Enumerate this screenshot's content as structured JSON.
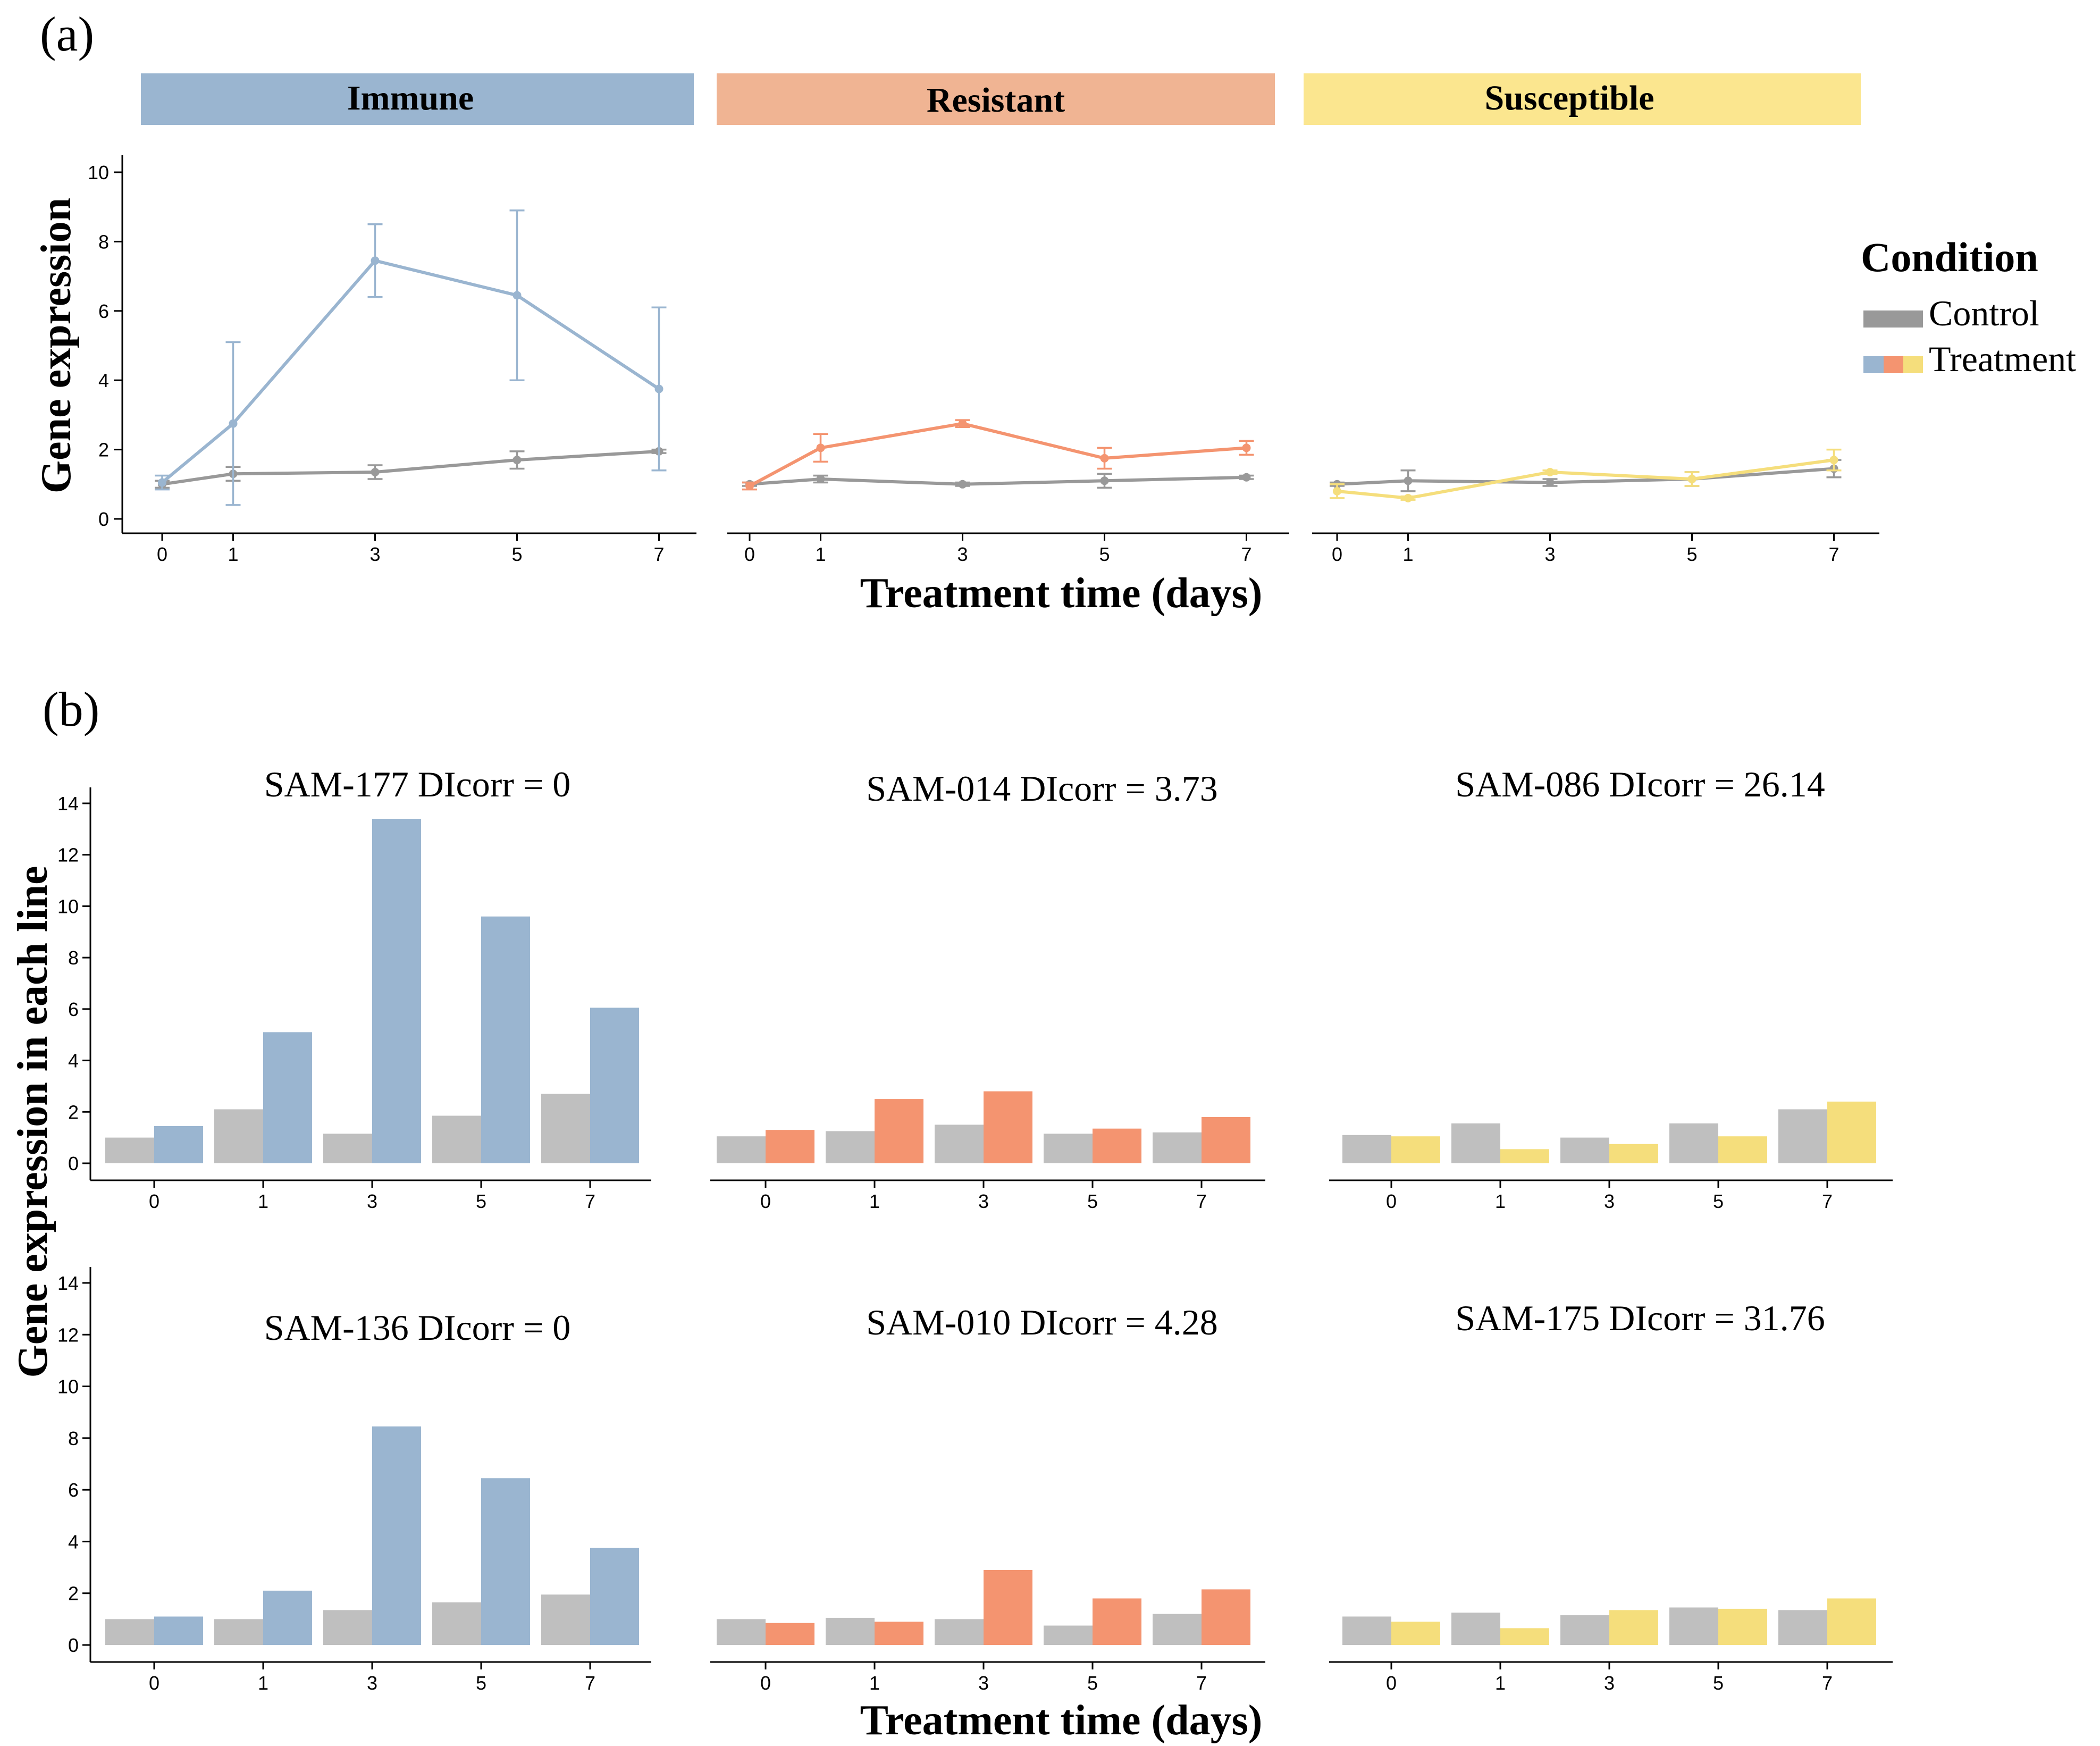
{
  "panel_a": {
    "label": "(a)",
    "ylabel": "Gene expression",
    "xlabel": "Treatment time (days)",
    "legend": {
      "title": "Condition",
      "control_label": "Control",
      "treatment_label": "Treatment"
    }
  },
  "panel_b": {
    "label": "(b)",
    "ylabel": "Gene expression in each line",
    "xlabel": "Treatment time (days)"
  },
  "colors": {
    "control": "#999999",
    "control_bar": "#bfbfbf",
    "immune": "#9ab5d0",
    "resistant": "#f49470",
    "resistant_strip": "#f0b493",
    "susceptible": "#f5de7c",
    "susceptible_strip": "#fbe68f"
  },
  "chart_data": [
    {
      "type": "line",
      "panel": "a",
      "x": [
        0,
        1,
        3,
        5,
        7
      ],
      "ylim": [
        0,
        10
      ],
      "yticks": [
        0,
        2,
        4,
        6,
        8,
        10
      ],
      "facets": [
        {
          "strip": "Immune",
          "color_key": "immune",
          "series": [
            {
              "name": "Control",
              "values": [
                1.0,
                1.3,
                1.35,
                1.7,
                1.95
              ],
              "err": [
                0.1,
                0.2,
                0.2,
                0.25,
                0.05
              ]
            },
            {
              "name": "Treatment",
              "values": [
                1.05,
                2.75,
                7.45,
                6.45,
                3.75
              ],
              "err": [
                0.2,
                2.35,
                1.05,
                2.45,
                2.35
              ]
            }
          ]
        },
        {
          "strip": "Resistant",
          "color_key": "resistant",
          "series": [
            {
              "name": "Control",
              "values": [
                1.0,
                1.15,
                1.0,
                1.1,
                1.2
              ],
              "err": [
                0.05,
                0.1,
                0.05,
                0.2,
                0.05
              ]
            },
            {
              "name": "Treatment",
              "values": [
                0.95,
                2.05,
                2.75,
                1.75,
                2.05
              ],
              "err": [
                0.1,
                0.4,
                0.1,
                0.3,
                0.2
              ]
            }
          ]
        },
        {
          "strip": "Susceptible",
          "color_key": "susceptible",
          "series": [
            {
              "name": "Control",
              "values": [
                1.0,
                1.1,
                1.05,
                1.15,
                1.45
              ],
              "err": [
                0.05,
                0.3,
                0.1,
                0.2,
                0.25
              ]
            },
            {
              "name": "Treatment",
              "values": [
                0.8,
                0.6,
                1.35,
                1.15,
                1.7
              ],
              "err": [
                0.2,
                0.05,
                0.05,
                0.2,
                0.3
              ]
            }
          ]
        }
      ]
    },
    {
      "type": "bar",
      "panel": "b",
      "categories": [
        "0",
        "1",
        "3",
        "5",
        "7"
      ],
      "ylim": [
        0,
        14
      ],
      "yticks": [
        0,
        2,
        4,
        6,
        8,
        10,
        12,
        14
      ],
      "lines": [
        {
          "title": "SAM-177 DIcorr = 0",
          "color_key": "immune",
          "control": [
            1.0,
            2.1,
            1.15,
            1.85,
            2.7
          ],
          "treatment": [
            1.45,
            5.1,
            13.4,
            9.6,
            6.05
          ]
        },
        {
          "title": "SAM-014 DIcorr = 3.73",
          "color_key": "resistant",
          "control": [
            1.05,
            1.25,
            1.5,
            1.15,
            1.2
          ],
          "treatment": [
            1.3,
            2.5,
            2.8,
            1.35,
            1.8
          ]
        },
        {
          "title": "SAM-086 DIcorr = 26.14",
          "color_key": "susceptible",
          "control": [
            1.1,
            1.55,
            1.0,
            1.55,
            2.1
          ],
          "treatment": [
            1.05,
            0.55,
            0.75,
            1.05,
            2.4
          ]
        },
        {
          "title": "SAM-136 DIcorr = 0",
          "color_key": "immune",
          "control": [
            1.0,
            1.0,
            1.35,
            1.65,
            1.95
          ],
          "treatment": [
            1.1,
            2.1,
            8.45,
            6.45,
            3.75
          ]
        },
        {
          "title": "SAM-010 DIcorr = 4.28",
          "color_key": "resistant",
          "control": [
            1.0,
            1.05,
            1.0,
            0.75,
            1.2
          ],
          "treatment": [
            0.85,
            0.9,
            2.9,
            1.8,
            2.15
          ]
        },
        {
          "title": "SAM-175 DIcorr = 31.76",
          "color_key": "susceptible",
          "control": [
            1.1,
            1.25,
            1.15,
            1.45,
            1.35
          ],
          "treatment": [
            0.9,
            0.65,
            1.35,
            1.4,
            1.8
          ]
        }
      ]
    }
  ]
}
